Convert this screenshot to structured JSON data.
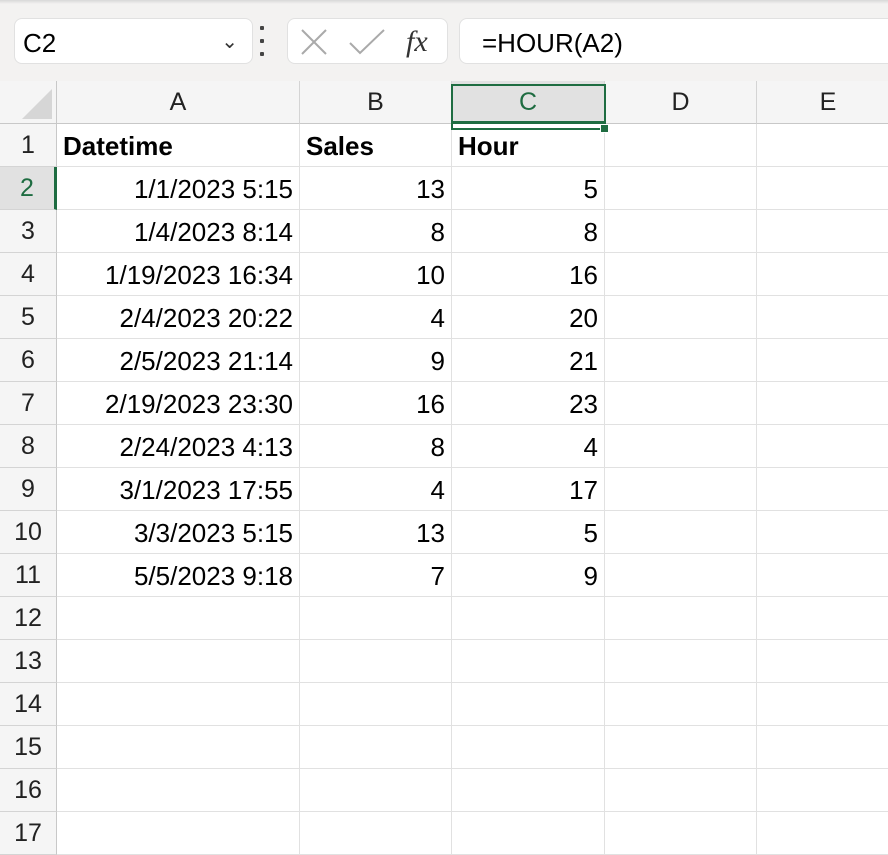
{
  "name_box": {
    "value": "C2"
  },
  "formula_bar": {
    "value": "=HOUR(A2)",
    "cancel_icon": "x-icon",
    "enter_icon": "check-icon",
    "fx_label": "fx"
  },
  "columns": [
    "A",
    "B",
    "C",
    "D",
    "E"
  ],
  "selected_column": "C",
  "selected_row": "2",
  "row_numbers": [
    "1",
    "2",
    "3",
    "4",
    "5",
    "6",
    "7",
    "8",
    "9",
    "10",
    "11",
    "12",
    "13",
    "14",
    "15",
    "16",
    "17"
  ],
  "headers": [
    "Datetime",
    "Sales",
    "Hour"
  ],
  "rows": [
    [
      "1/1/2023 5:15",
      "13",
      "5"
    ],
    [
      "1/4/2023 8:14",
      "8",
      "8"
    ],
    [
      "1/19/2023 16:34",
      "10",
      "16"
    ],
    [
      "2/4/2023 20:22",
      "4",
      "20"
    ],
    [
      "2/5/2023 21:14",
      "9",
      "21"
    ],
    [
      "2/19/2023 23:30",
      "16",
      "23"
    ],
    [
      "2/24/2023 4:13",
      "8",
      "4"
    ],
    [
      "3/1/2023 17:55",
      "4",
      "17"
    ],
    [
      "3/3/2023 5:15",
      "13",
      "5"
    ],
    [
      "5/5/2023 9:18",
      "7",
      "9"
    ]
  ],
  "colors": {
    "accent": "#1e6c41"
  }
}
